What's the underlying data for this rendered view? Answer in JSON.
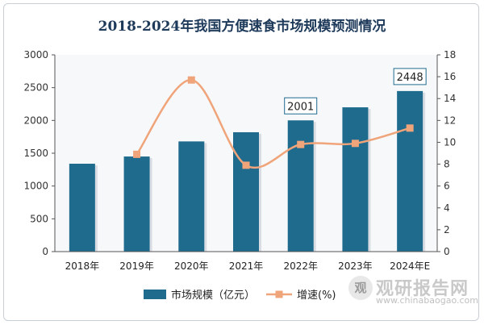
{
  "chart_data": {
    "title": "2018-2024年我国方便速食市场规模预测情况",
    "type": "bar+line",
    "categories": [
      "2018年",
      "2019年",
      "2020年",
      "2021年",
      "2022年",
      "2023年",
      "2024年E"
    ],
    "series": [
      {
        "name": "市场规模（亿元）",
        "type": "bar",
        "axis": "left",
        "color": "#1f6b8e",
        "values": [
          1340,
          1450,
          1680,
          1820,
          2001,
          2200,
          2448
        ]
      },
      {
        "name": "增速(%)",
        "type": "line",
        "axis": "right",
        "color": "#f0a47a",
        "values": [
          null,
          8.9,
          15.7,
          7.9,
          9.8,
          9.9,
          11.3
        ]
      }
    ],
    "left_axis": {
      "min": 0,
      "max": 3000,
      "ticks": [
        0,
        500,
        1000,
        1500,
        2000,
        2500,
        3000
      ]
    },
    "right_axis": {
      "min": 0,
      "max": 18,
      "ticks": [
        0,
        2,
        4,
        6,
        8,
        10,
        12,
        14,
        16,
        18
      ]
    },
    "annotations": [
      {
        "category_index": 4,
        "label": "2001"
      },
      {
        "category_index": 6,
        "label": "2448"
      }
    ],
    "legend": {
      "placement": "bottom"
    },
    "grid": false
  },
  "watermark": {
    "logo_glyph": "观",
    "text": "观研报告网",
    "url": "www.chinabaogao.com"
  }
}
